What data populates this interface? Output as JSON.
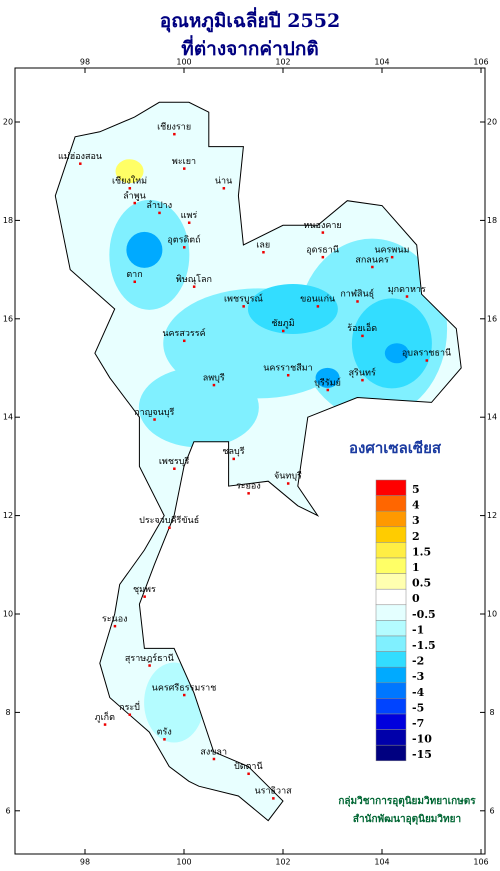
{
  "header": {
    "title": [
      "อุณหภูมิเฉลี่ยปี 2552",
      "ที่ต่างจากค่าปกติ"
    ]
  },
  "axes": {
    "lon_ticks": [
      98,
      100,
      102,
      104,
      106
    ],
    "lat_ticks": [
      6,
      8,
      10,
      12,
      14,
      16,
      18,
      20
    ]
  },
  "legend": {
    "unit": "องศาเซลเซียส",
    "entries": [
      {
        "value": 5,
        "color": "#ff0000"
      },
      {
        "value": 4,
        "color": "#ff6600"
      },
      {
        "value": 3,
        "color": "#ff9900"
      },
      {
        "value": 2,
        "color": "#ffcc00"
      },
      {
        "value": 1.5,
        "color": "#ffee44"
      },
      {
        "value": 1,
        "color": "#ffff66"
      },
      {
        "value": 0.5,
        "color": "#ffffb0"
      },
      {
        "value": 0,
        "color": "#ffffff"
      },
      {
        "value": -0.5,
        "color": "#e4ffff"
      },
      {
        "value": -1,
        "color": "#b4fcff"
      },
      {
        "value": -1.5,
        "color": "#80f0ff"
      },
      {
        "value": -2,
        "color": "#33ddff"
      },
      {
        "value": -3,
        "color": "#00aaff"
      },
      {
        "value": -4,
        "color": "#0077ff"
      },
      {
        "value": -5,
        "color": "#0044ff"
      },
      {
        "value": -7,
        "color": "#0000dd"
      },
      {
        "value": -10,
        "color": "#0000aa"
      },
      {
        "value": -15,
        "color": "#000080"
      }
    ]
  },
  "provinces": [
    "เชียงราย",
    "แม่ฮ่องสอน",
    "เชียงใหม่",
    "ลำพูน",
    "พะเยา",
    "น่าน",
    "ลำปาง",
    "แพร่",
    "อุตรดิตถ์",
    "ตาก",
    "พิษณุโลก",
    "หนองคาย",
    "อุดรธานี",
    "นครพนม",
    "สกลนคร",
    "มุกดาหาร",
    "เลย",
    "ขอนแก่น",
    "กาฬสินธุ์",
    "ร้อยเอ็ด",
    "อุบลราชธานี",
    "ชัยภูมิ",
    "นครราชสีมา",
    "บุรีรัมย์",
    "สุรินทร์",
    "เพชรบูรณ์",
    "นครสวรรค์",
    "กาญจนบุรี",
    "ลพบุรี",
    "ชลบุรี",
    "ระยอง",
    "จันทบุรี",
    "เพชรบุรี",
    "ประจวบคีรีขันธ์",
    "ชุมพร",
    "ระนอง",
    "สุราษฎร์ธานี",
    "นครศรีธรรมราช",
    "ภูเก็ต",
    "กระบี่",
    "ตรัง",
    "สงขลา",
    "ปัตตานี",
    "นราธิวาส"
  ],
  "credit": [
    "กลุ่มวิชาการอุตุนิยมวิทยาเกษตร",
    "สำนักพัฒนาอุตุนิยมวิทยา"
  ]
}
